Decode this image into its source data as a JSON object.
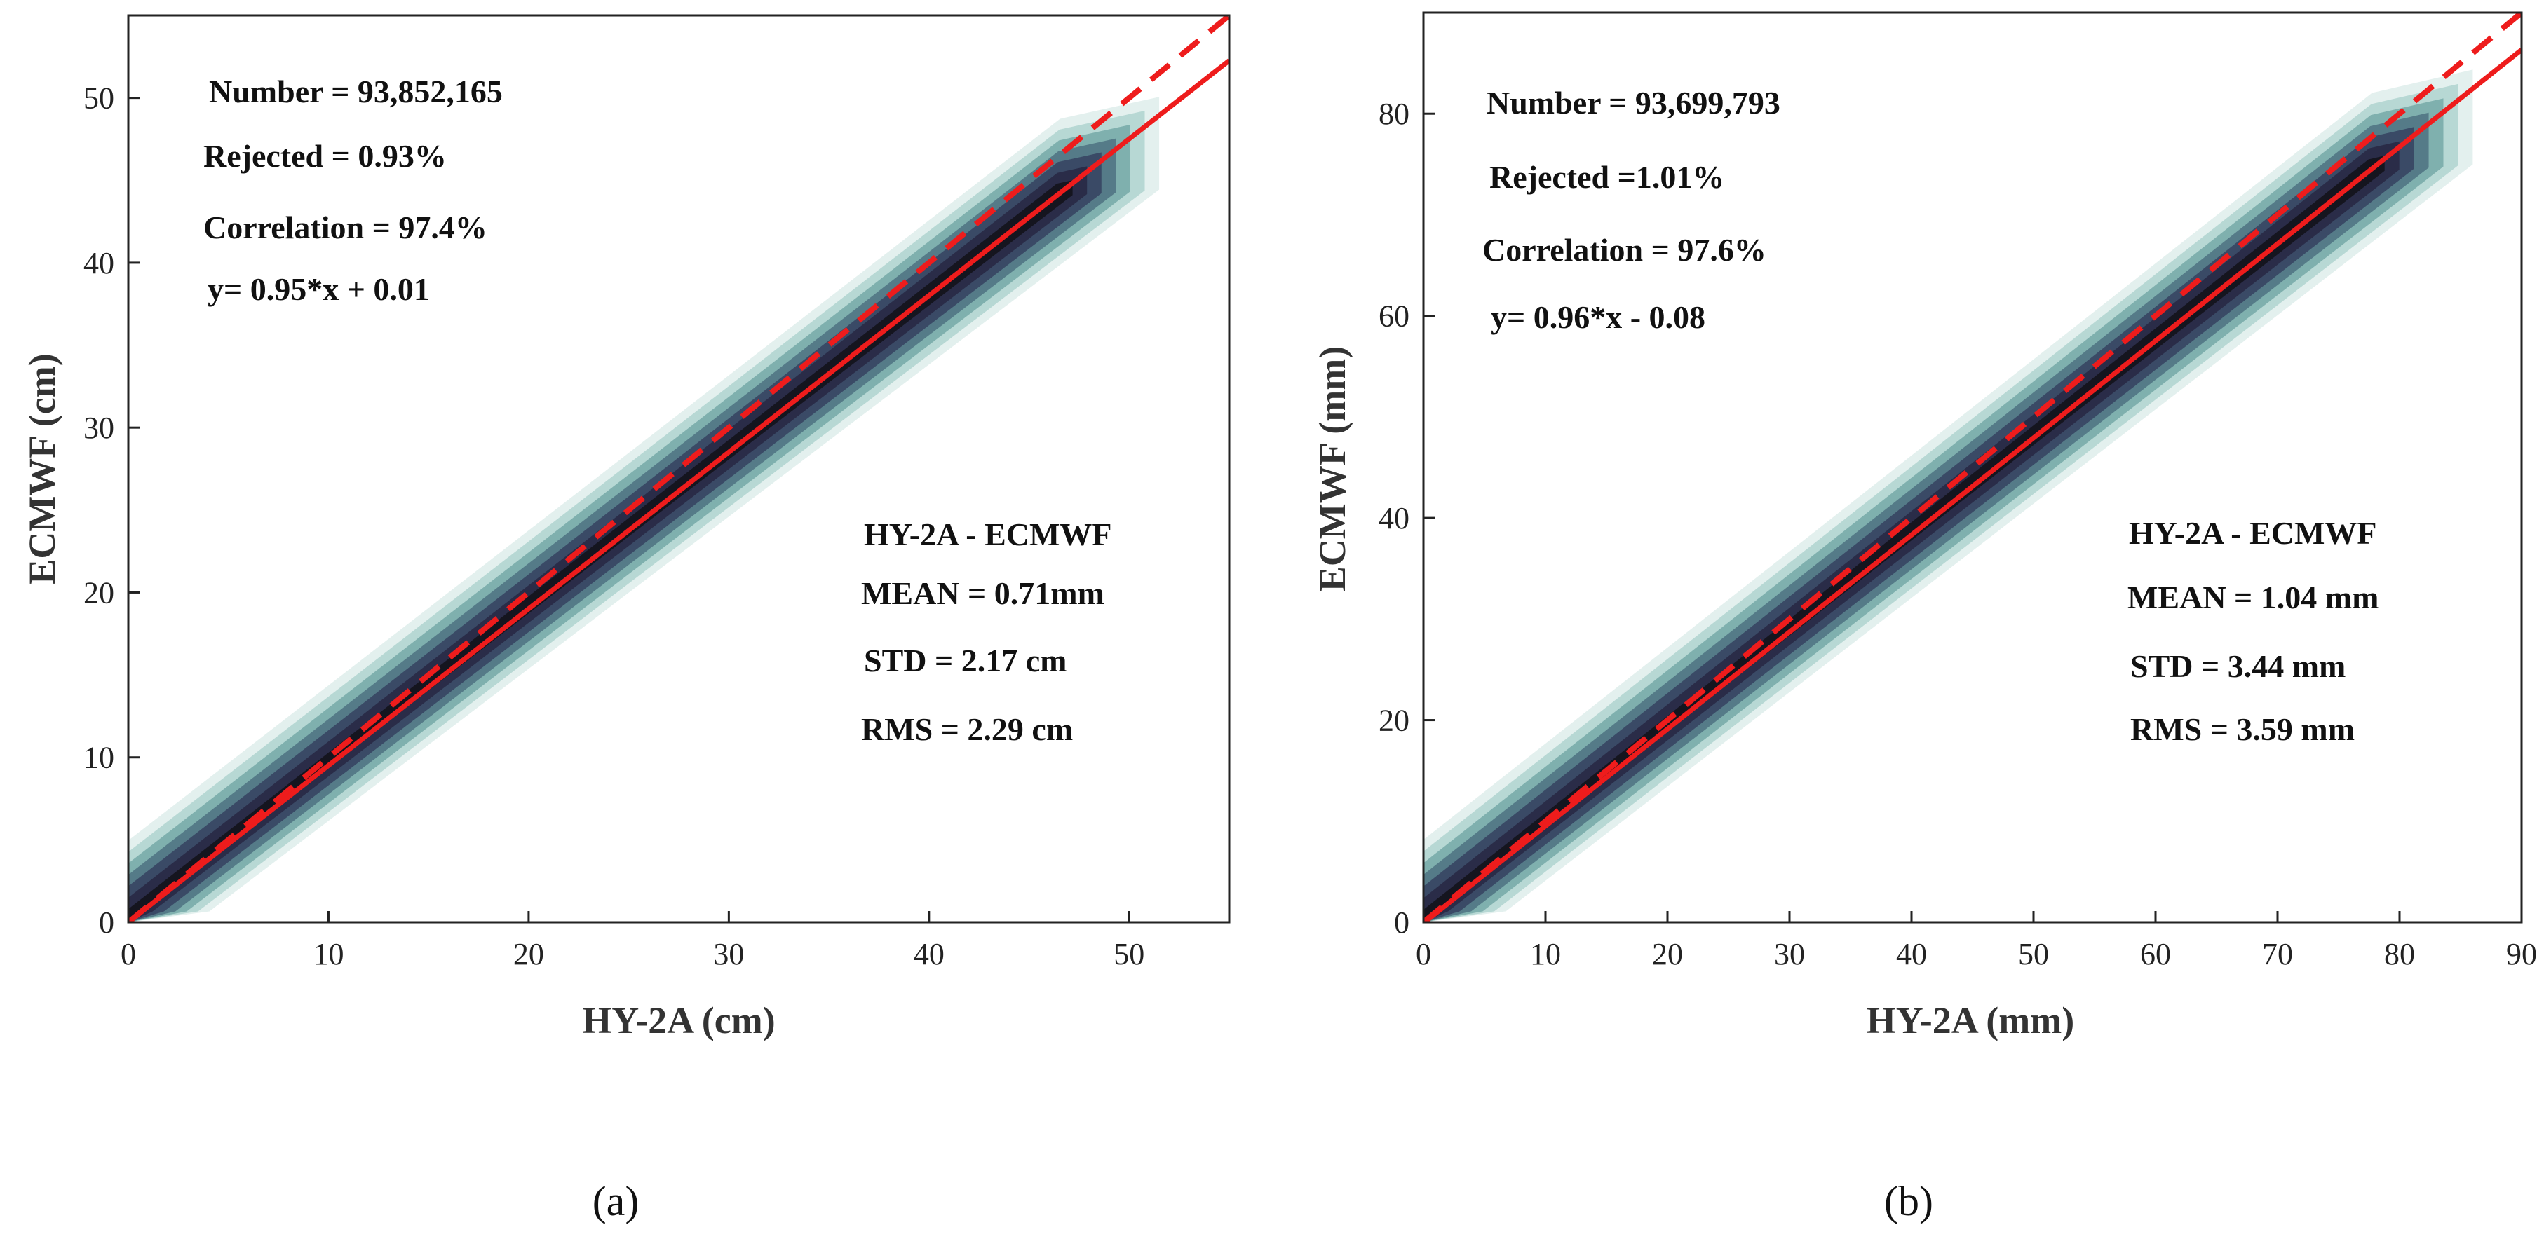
{
  "chart_data": [
    {
      "type": "scatter",
      "panel_label": "(a)",
      "xlabel": "HY-2A (cm)",
      "ylabel": "ECMWF (cm)",
      "xlim": [
        0,
        55
      ],
      "ylim": [
        0,
        55
      ],
      "xticks": [
        0,
        10,
        20,
        30,
        40,
        50
      ],
      "yticks": [
        0,
        10,
        20,
        30,
        40,
        50
      ],
      "density_band": {
        "slope": 0.95,
        "intercept": 0.01,
        "x_max": 51.5,
        "spread": 4.5
      },
      "lines": [
        {
          "name": "fit",
          "style": "solid",
          "color": "#ee1c1c",
          "slope": 0.95,
          "intercept": 0.01
        },
        {
          "name": "one-to-one",
          "style": "dashed",
          "color": "#ee1c1c",
          "slope": 1.0,
          "intercept": 0
        }
      ],
      "stats": [
        "Number = 93,852,165",
        "Rejected = 0.93%",
        "Correlation = 97.4%",
        "y= 0.95*x + 0.01"
      ],
      "diff_stats": [
        "HY-2A - ECMWF",
        "MEAN = 0.71mm",
        "STD = 2.17 cm",
        "RMS = 2.29 cm"
      ]
    },
    {
      "type": "scatter",
      "panel_label": "(b)",
      "xlabel": "HY-2A (mm)",
      "ylabel": "ECMWF (mm)",
      "xlim": [
        0,
        90
      ],
      "ylim": [
        0,
        90
      ],
      "xticks": [
        0,
        10,
        20,
        30,
        40,
        50,
        60,
        70,
        80,
        90
      ],
      "yticks": [
        0,
        20,
        40,
        60,
        80
      ],
      "density_band": {
        "slope": 0.96,
        "intercept": -0.08,
        "x_max": 86,
        "spread": 7.5
      },
      "lines": [
        {
          "name": "fit",
          "style": "solid",
          "color": "#ee1c1c",
          "slope": 0.96,
          "intercept": -0.08
        },
        {
          "name": "one-to-one",
          "style": "dashed",
          "color": "#ee1c1c",
          "slope": 1.0,
          "intercept": 0
        }
      ],
      "stats": [
        "Number = 93,699,793",
        "Rejected =1.01%",
        "Correlation = 97.6%",
        "y= 0.96*x - 0.08"
      ],
      "diff_stats": [
        "HY-2A - ECMWF",
        "MEAN = 1.04 mm",
        "STD = 3.44 mm",
        "RMS = 3.59 mm"
      ]
    }
  ],
  "colors": {
    "band_outer": "#e4f1ef",
    "band_mid": "#7fb3b0",
    "band_inner": "#2c2f4a",
    "band_core": "#0a0a12",
    "line": "#ee1c1c"
  }
}
